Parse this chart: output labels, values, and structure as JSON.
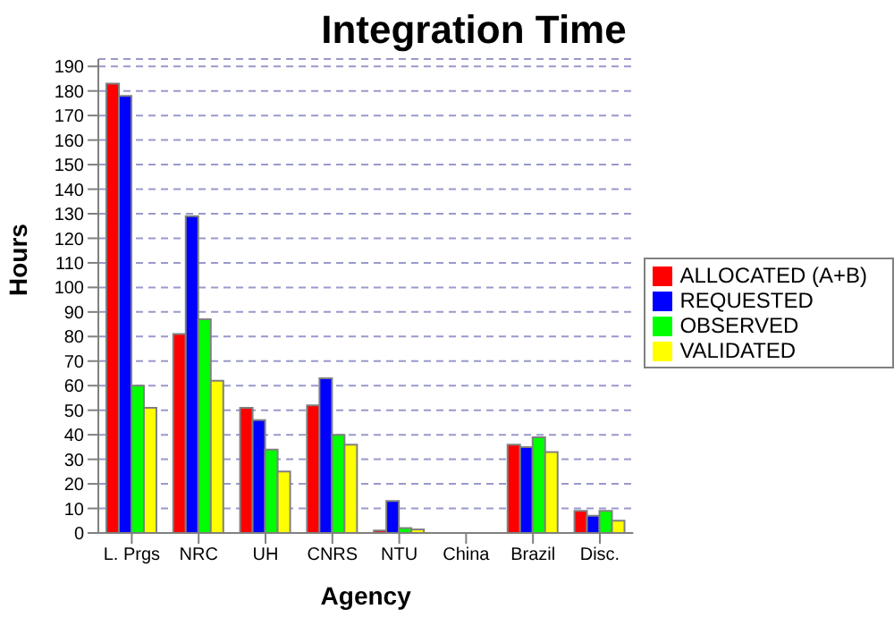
{
  "chart_data": {
    "type": "bar",
    "title": "Integration Time",
    "xlabel": "Agency",
    "ylabel": "Hours",
    "categories": [
      "L. Prgs",
      "NRC",
      "UH",
      "CNRS",
      "NTU",
      "China",
      "Brazil",
      "Disc."
    ],
    "series": [
      {
        "name": "ALLOCATED (A+B)",
        "color": "#ff0000",
        "values": [
          183,
          81,
          51,
          52,
          1,
          null,
          36,
          9
        ]
      },
      {
        "name": "REQUESTED",
        "color": "#0000ff",
        "values": [
          178,
          129,
          46,
          63,
          13,
          null,
          35,
          7
        ]
      },
      {
        "name": "OBSERVED",
        "color": "#00ff00",
        "values": [
          60,
          87,
          34,
          40,
          2,
          null,
          39,
          9
        ]
      },
      {
        "name": "VALIDATED",
        "color": "#ffff00",
        "values": [
          51,
          62,
          25,
          36,
          1.5,
          null,
          33,
          5
        ]
      }
    ],
    "ylim": [
      0,
      193
    ],
    "yticks": [
      0,
      10,
      20,
      30,
      40,
      50,
      60,
      70,
      80,
      90,
      100,
      110,
      120,
      130,
      140,
      150,
      160,
      170,
      180,
      190
    ],
    "grid": "y",
    "legend": "right"
  }
}
